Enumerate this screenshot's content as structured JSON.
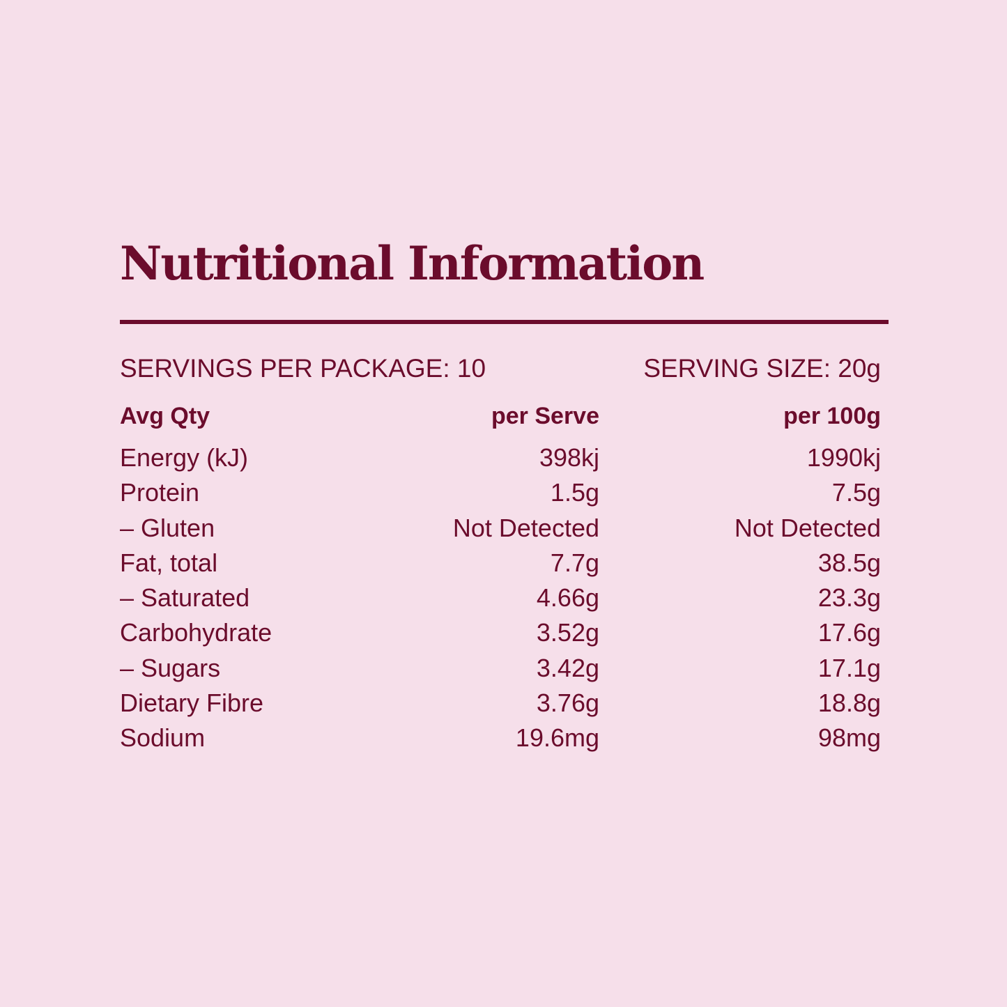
{
  "title": "Nutritional Information",
  "servings_per_package": "SERVINGS PER PACKAGE: 10",
  "serving_size": "SERVING SIZE: 20g",
  "header": {
    "name": "Avg Qty",
    "per_serve": "per Serve",
    "per_100g": "per 100g"
  },
  "rows": [
    {
      "name": "Energy (kJ)",
      "per_serve": "398kj",
      "per_100g": "1990kj"
    },
    {
      "name": "Protein",
      "per_serve": "1.5g",
      "per_100g": "7.5g"
    },
    {
      "name": "– Gluten",
      "per_serve": "Not Detected",
      "per_100g": "Not Detected"
    },
    {
      "name": "Fat, total",
      "per_serve": "7.7g",
      "per_100g": "38.5g"
    },
    {
      "name": "– Saturated",
      "per_serve": "4.66g",
      "per_100g": "23.3g"
    },
    {
      "name": "Carbohydrate",
      "per_serve": "3.52g",
      "per_100g": "17.6g"
    },
    {
      "name": "– Sugars",
      "per_serve": "3.42g",
      "per_100g": "17.1g"
    },
    {
      "name": "Dietary Fibre",
      "per_serve": "3.76g",
      "per_100g": "18.8g"
    },
    {
      "name": "Sodium",
      "per_serve": "19.6mg",
      "per_100g": "98mg"
    }
  ],
  "colors": {
    "background": "#f6dfea",
    "text": "#6b0c2c"
  }
}
